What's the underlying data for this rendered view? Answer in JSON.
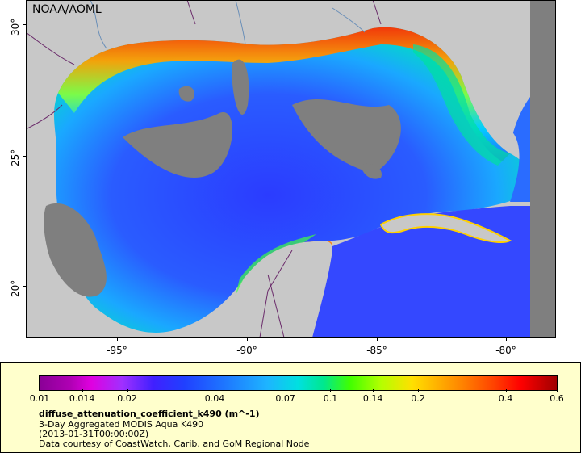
{
  "map": {
    "credit": "NOAA/AOML",
    "lat_ticks": [
      "30°",
      "25°",
      "20°"
    ],
    "lon_ticks": [
      "-95°",
      "-90°",
      "-85°",
      "-80°"
    ],
    "colors": {
      "land": "#c8c8c8",
      "cloud_mask": "#7f7f7f",
      "border": "#6a2a6a",
      "river": "#6a8fb8"
    }
  },
  "legend": {
    "variable": "diffuse_attenuation_coefficient_k490 (m^-1)",
    "line2": "3-Day Aggregated MODIS Aqua K490",
    "line3": "(2013-01-31T00:00:00Z)",
    "line4": "Data courtesy of CoastWatch, Carib. and GoM Regional Node",
    "scale_labels": [
      "0.01",
      "0.014",
      "0.02",
      "0.04",
      "0.07",
      "0.1",
      "0.14",
      "0.2",
      "0.4",
      "0.6"
    ],
    "scale_type": "log"
  }
}
